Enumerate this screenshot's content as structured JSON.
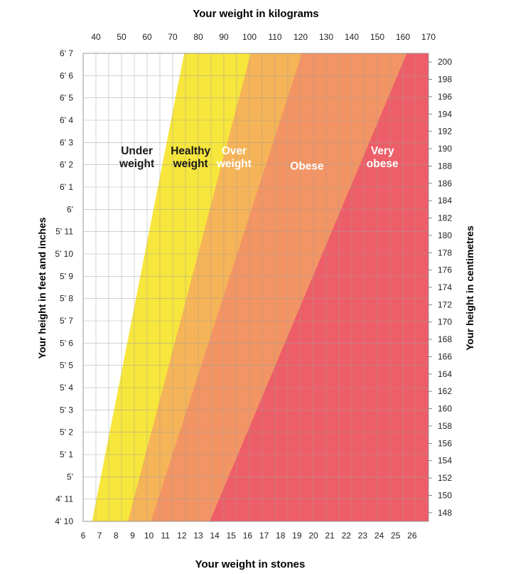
{
  "chart_data": {
    "type": "area",
    "titles": {
      "top": "Your weight in kilograms",
      "bottom": "Your weight in stones",
      "left": "Your height in feet and inches",
      "right": "Your height in centimetres"
    },
    "axes": {
      "kg": {
        "range": [
          35,
          170
        ],
        "ticks": [
          40,
          50,
          60,
          70,
          80,
          90,
          100,
          110,
          120,
          130,
          140,
          150,
          160,
          170
        ]
      },
      "stones": {
        "range": [
          6,
          27
        ],
        "ticks": [
          6,
          7,
          8,
          9,
          10,
          11,
          12,
          13,
          14,
          15,
          16,
          17,
          18,
          19,
          20,
          21,
          22,
          23,
          24,
          25,
          26
        ]
      },
      "height_ft_in": {
        "range_inches": [
          58,
          79
        ],
        "ticks": [
          {
            "in": 58,
            "label": "4' 10"
          },
          {
            "in": 59,
            "label": "4' 11"
          },
          {
            "in": 60,
            "label": "5'"
          },
          {
            "in": 61,
            "label": "5' 1"
          },
          {
            "in": 62,
            "label": "5' 2"
          },
          {
            "in": 63,
            "label": "5' 3"
          },
          {
            "in": 64,
            "label": "5' 4"
          },
          {
            "in": 65,
            "label": "5' 5"
          },
          {
            "in": 66,
            "label": "5' 6"
          },
          {
            "in": 67,
            "label": "5' 7"
          },
          {
            "in": 68,
            "label": "5' 8"
          },
          {
            "in": 69,
            "label": "5' 9"
          },
          {
            "in": 70,
            "label": "5' 10"
          },
          {
            "in": 71,
            "label": "5' 11"
          },
          {
            "in": 72,
            "label": "6'"
          },
          {
            "in": 73,
            "label": "6' 1"
          },
          {
            "in": 74,
            "label": "6' 2"
          },
          {
            "in": 75,
            "label": "6' 3"
          },
          {
            "in": 76,
            "label": "6' 4"
          },
          {
            "in": 77,
            "label": "6' 5"
          },
          {
            "in": 78,
            "label": "6' 6"
          },
          {
            "in": 79,
            "label": "6' 7"
          }
        ]
      },
      "height_cm": {
        "range": [
          147,
          201
        ],
        "ticks": [
          148,
          150,
          152,
          154,
          156,
          158,
          160,
          162,
          164,
          166,
          168,
          170,
          172,
          174,
          176,
          178,
          180,
          182,
          184,
          186,
          188,
          190,
          192,
          194,
          196,
          198,
          200
        ]
      }
    },
    "grid": true,
    "zones": [
      {
        "label": "Under weight",
        "lines": [
          "Under",
          "weight"
        ],
        "color": "#ffffff",
        "text_color": "#1a1a1a",
        "label_kg": 56,
        "label_cm": 189
      },
      {
        "label": "Healthy weight",
        "lines": [
          "Healthy",
          "weight"
        ],
        "color": "#f7e63c",
        "text_color": "#1a1a1a",
        "lower_kg": [
          38.5,
          74.5
        ],
        "label_kg": 77,
        "label_cm": 189
      },
      {
        "label": "Over weight",
        "lines": [
          "Over",
          "weight"
        ],
        "color": "#f6b458",
        "text_color": "#ffffff",
        "lower_kg": [
          52.5,
          100.5
        ],
        "label_kg": 94,
        "label_cm": 189
      },
      {
        "label": "Obese",
        "lines": [
          "Obese"
        ],
        "color": "#f39464",
        "text_color": "#ffffff",
        "lower_kg": [
          61.5,
          120.5
        ],
        "label_kg": 122.5,
        "label_cm": 188
      },
      {
        "label": "Very obese",
        "lines": [
          "Very",
          "obese"
        ],
        "color": "#ee5e68",
        "text_color": "#ffffff",
        "lower_kg": [
          84.5,
          161.5
        ],
        "label_kg": 152,
        "label_cm": 189
      }
    ]
  }
}
